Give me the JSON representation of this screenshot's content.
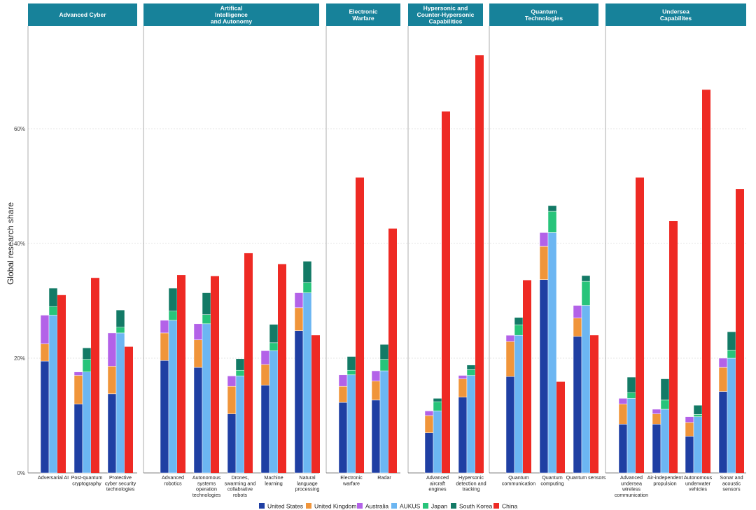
{
  "chart_data": {
    "type": "bar",
    "ylabel": "Global research share",
    "ylim": [
      0,
      80
    ],
    "yticks": [
      {
        "value": 0,
        "label": "0%"
      },
      {
        "value": 20,
        "label": "20%"
      },
      {
        "value": 40,
        "label": "40%"
      },
      {
        "value": 60,
        "label": "60%"
      }
    ],
    "grid": "horizontal dotted",
    "legend_position": "bottom",
    "colors": {
      "United States": "#1f3fa3",
      "United Kingdom": "#f0953a",
      "Australia": "#b362e8",
      "AUKUS": "#6cb6f2",
      "Japan": "#27c47a",
      "South Korea": "#137a66",
      "China": "#ee2a24"
    },
    "legend": [
      "United States",
      "United Kingdom",
      "Australia",
      "AUKUS",
      "Japan",
      "South Korea",
      "China"
    ],
    "panels": [
      {
        "title": [
          "Advanced Cyber"
        ],
        "categories": [
          {
            "label": [
              "Adversarial AI"
            ],
            "us": 19.5,
            "uk": 3,
            "au": 5,
            "aukus": 27.5,
            "jp": 1.5,
            "kr": 3.2,
            "cn": 31
          },
          {
            "label": [
              "Post-quantum",
              "cryptography"
            ],
            "us": 12,
            "uk": 5,
            "au": 0.6,
            "aukus": 17.6,
            "jp": 2.2,
            "kr": 2,
            "cn": 34
          },
          {
            "label": [
              "Protective",
              "cyber security",
              "technologies"
            ],
            "us": 13.8,
            "uk": 4.8,
            "au": 5.8,
            "aukus": 24.4,
            "jp": 1,
            "kr": 3,
            "cn": 22
          }
        ]
      },
      {
        "title": [
          "Artifical",
          "Intelligence",
          "and Autonomy"
        ],
        "categories": [
          {
            "label": [
              "Advanced",
              "robotics"
            ],
            "us": 19.6,
            "uk": 4.8,
            "au": 2.2,
            "aukus": 26.6,
            "jp": 1.6,
            "kr": 4,
            "cn": 34.5
          },
          {
            "label": [
              "Autonomous",
              "systems",
              "operation",
              "technologies"
            ],
            "us": 18.4,
            "uk": 4.8,
            "au": 2.8,
            "aukus": 26,
            "jp": 1.6,
            "kr": 3.8,
            "cn": 34.3
          },
          {
            "label": [
              "Drones,",
              "swarming and",
              "collabrative",
              "robots"
            ],
            "us": 10.3,
            "uk": 4.8,
            "au": 1.8,
            "aukus": 16.9,
            "jp": 1,
            "kr": 2,
            "cn": 38.3
          },
          {
            "label": [
              "Machine",
              "learning"
            ],
            "us": 15.3,
            "uk": 3.6,
            "au": 2.4,
            "aukus": 21.3,
            "jp": 1.4,
            "kr": 3.2,
            "cn": 36.4
          },
          {
            "label": [
              "Natural",
              "language",
              "processing"
            ],
            "us": 24.8,
            "uk": 4,
            "au": 2.6,
            "aukus": 31.4,
            "jp": 1.8,
            "kr": 3.7,
            "cn": 24
          }
        ]
      },
      {
        "title": [
          "Electronic",
          "Warfare"
        ],
        "categories": [
          {
            "label": [
              "Electronic",
              "warfare"
            ],
            "us": 12.3,
            "uk": 2.8,
            "au": 2,
            "aukus": 17.1,
            "jp": 0.8,
            "kr": 2.4,
            "cn": 51.5
          },
          {
            "label": [
              "Radar"
            ],
            "us": 12.7,
            "uk": 3.3,
            "au": 1.8,
            "aukus": 17.8,
            "jp": 2,
            "kr": 2.6,
            "cn": 42.6
          }
        ]
      },
      {
        "title": [
          "Hypersonic and",
          "Counter-Hypersonic",
          "Capabilities"
        ],
        "categories": [
          {
            "label": [
              "Advanced",
              "aircraft",
              "engines"
            ],
            "us": 7,
            "uk": 3,
            "au": 0.8,
            "aukus": 10.8,
            "jp": 1.6,
            "kr": 0.6,
            "cn": 63
          },
          {
            "label": [
              "Hypersonic",
              "detection and",
              "tracking"
            ],
            "us": 13.2,
            "uk": 3.2,
            "au": 0.6,
            "aukus": 17,
            "jp": 1,
            "kr": 0.8,
            "cn": 72.8
          }
        ]
      },
      {
        "title": [
          "Quantum",
          "Technologies"
        ],
        "categories": [
          {
            "label": [
              "Quantum",
              "communication"
            ],
            "us": 16.8,
            "uk": 6.1,
            "au": 1.1,
            "aukus": 24,
            "jp": 1.8,
            "kr": 1.3,
            "cn": 33.6
          },
          {
            "label": [
              "Quantum",
              "computing"
            ],
            "us": 33.7,
            "uk": 5.8,
            "au": 2.4,
            "aukus": 41.9,
            "jp": 3.7,
            "kr": 1,
            "cn": 15.9
          },
          {
            "label": [
              "Quantum sensors"
            ],
            "us": 23.8,
            "uk": 3.2,
            "au": 2.2,
            "aukus": 29.2,
            "jp": 4.2,
            "kr": 1,
            "cn": 24
          }
        ]
      },
      {
        "title": [
          "Undersea",
          "Capabilites"
        ],
        "categories": [
          {
            "label": [
              "Advanced",
              "undersea",
              "wireless",
              "communication"
            ],
            "us": 8.5,
            "uk": 3.5,
            "au": 1,
            "aukus": 13,
            "jp": 1,
            "kr": 2.7,
            "cn": 51.5
          },
          {
            "label": [
              "Air-independent",
              "propulsion"
            ],
            "us": 8.5,
            "uk": 1.8,
            "au": 0.8,
            "aukus": 11.1,
            "jp": 1.6,
            "kr": 3.7,
            "cn": 43.9
          },
          {
            "label": [
              "Autonomous",
              "underwater",
              "vehicles"
            ],
            "us": 6.4,
            "uk": 2.4,
            "au": 1,
            "aukus": 9.8,
            "jp": 0.4,
            "kr": 1.6,
            "cn": 66.8
          },
          {
            "label": [
              "Sonar and",
              "acoustic",
              "sensors"
            ],
            "us": 14.2,
            "uk": 4.2,
            "au": 1.6,
            "aukus": 20,
            "jp": 1.4,
            "kr": 3.2,
            "cn": 49.5
          }
        ]
      }
    ]
  }
}
